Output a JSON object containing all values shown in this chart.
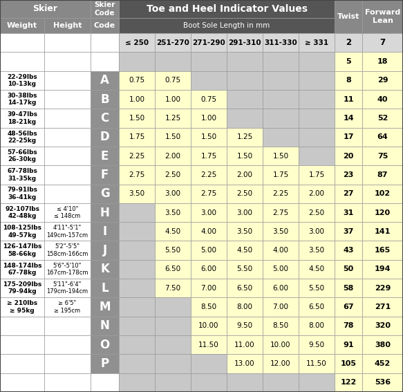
{
  "rows": [
    {
      "weight": "",
      "height": "",
      "code": "",
      "vals": [
        "",
        "",
        "",
        "",
        "",
        ""
      ],
      "twist": "2",
      "lean": "7",
      "is_range_row": true
    },
    {
      "weight": "",
      "height": "",
      "code": "",
      "vals": [
        "",
        "",
        "",
        "",
        "",
        ""
      ],
      "twist": "5",
      "lean": "18",
      "is_range_row": false
    },
    {
      "weight": "22-29lbs\n10-13kg",
      "height": "",
      "code": "A",
      "vals": [
        "0.75",
        "0.75",
        "",
        "",
        "",
        ""
      ],
      "twist": "8",
      "lean": "29",
      "is_range_row": false
    },
    {
      "weight": "30-38lbs\n14-17kg",
      "height": "",
      "code": "B",
      "vals": [
        "1.00",
        "1.00",
        "0.75",
        "",
        "",
        ""
      ],
      "twist": "11",
      "lean": "40",
      "is_range_row": false
    },
    {
      "weight": "39-47lbs\n18-21kg",
      "height": "",
      "code": "C",
      "vals": [
        "1.50",
        "1.25",
        "1.00",
        "",
        "",
        ""
      ],
      "twist": "14",
      "lean": "52",
      "is_range_row": false
    },
    {
      "weight": "48-56lbs\n22-25kg",
      "height": "",
      "code": "D",
      "vals": [
        "1.75",
        "1.50",
        "1.50",
        "1.25",
        "",
        ""
      ],
      "twist": "17",
      "lean": "64",
      "is_range_row": false
    },
    {
      "weight": "57-66lbs\n26-30kg",
      "height": "",
      "code": "E",
      "vals": [
        "2.25",
        "2.00",
        "1.75",
        "1.50",
        "1.50",
        ""
      ],
      "twist": "20",
      "lean": "75",
      "is_range_row": false
    },
    {
      "weight": "67-78lbs\n31-35kg",
      "height": "",
      "code": "F",
      "vals": [
        "2.75",
        "2.50",
        "2.25",
        "2.00",
        "1.75",
        "1.75"
      ],
      "twist": "23",
      "lean": "87",
      "is_range_row": false
    },
    {
      "weight": "79-91lbs\n36-41kg",
      "height": "",
      "code": "G",
      "vals": [
        "3.50",
        "3.00",
        "2.75",
        "2.50",
        "2.25",
        "2.00"
      ],
      "twist": "27",
      "lean": "102",
      "is_range_row": false
    },
    {
      "weight": "92-107lbs\n42-48kg",
      "height": "≤ 4'10\"\n≤ 148cm",
      "code": "H",
      "vals": [
        "",
        "3.50",
        "3.00",
        "3.00",
        "2.75",
        "2.50"
      ],
      "twist": "31",
      "lean": "120",
      "is_range_row": false
    },
    {
      "weight": "108-125lbs\n49-57kg",
      "height": "4'11\"-5'1\"\n149cm-157cm",
      "code": "I",
      "vals": [
        "",
        "4.50",
        "4.00",
        "3.50",
        "3.50",
        "3.00"
      ],
      "twist": "37",
      "lean": "141",
      "is_range_row": false
    },
    {
      "weight": "126-147lbs\n58-66kg",
      "height": "5'2\"-5'5\"\n158cm-166cm",
      "code": "J",
      "vals": [
        "",
        "5.50",
        "5.00",
        "4.50",
        "4.00",
        "3.50"
      ],
      "twist": "43",
      "lean": "165",
      "is_range_row": false
    },
    {
      "weight": "148-174lbs\n67-78kg",
      "height": "5'6\"-5'10\"\n167cm-178cm",
      "code": "K",
      "vals": [
        "",
        "6.50",
        "6.00",
        "5.50",
        "5.00",
        "4.50"
      ],
      "twist": "50",
      "lean": "194",
      "is_range_row": false
    },
    {
      "weight": "175-209lbs\n79-94kg",
      "height": "5'11\"-6'4\"\n179cm-194cm",
      "code": "L",
      "vals": [
        "",
        "7.50",
        "7.00",
        "6.50",
        "6.00",
        "5.50"
      ],
      "twist": "58",
      "lean": "229",
      "is_range_row": false
    },
    {
      "weight": "≥ 210lbs\n≥ 95kg",
      "height": "≥ 6'5\"\n≥ 195cm",
      "code": "M",
      "vals": [
        "",
        "",
        "8.50",
        "8.00",
        "7.00",
        "6.50"
      ],
      "twist": "67",
      "lean": "271",
      "is_range_row": false
    },
    {
      "weight": "",
      "height": "",
      "code": "N",
      "vals": [
        "",
        "",
        "10.00",
        "9.50",
        "8.50",
        "8.00"
      ],
      "twist": "78",
      "lean": "320",
      "is_range_row": false
    },
    {
      "weight": "",
      "height": "",
      "code": "O",
      "vals": [
        "",
        "",
        "11.50",
        "11.00",
        "10.00",
        "9.50"
      ],
      "twist": "91",
      "lean": "380",
      "is_range_row": false
    },
    {
      "weight": "",
      "height": "",
      "code": "P",
      "vals": [
        "",
        "",
        "",
        "13.00",
        "12.00",
        "11.50"
      ],
      "twist": "105",
      "lean": "452",
      "is_range_row": false
    },
    {
      "weight": "",
      "height": "",
      "code": "",
      "vals": [
        "",
        "",
        "",
        "",
        "",
        ""
      ],
      "twist": "122",
      "lean": "536",
      "is_range_row": false
    }
  ],
  "boot_ranges": [
    "≤ 250",
    "251-270",
    "271-290",
    "291-310",
    "311-330",
    "≥ 331"
  ],
  "c_dark": "#555555",
  "c_med": "#888888",
  "c_code_bg": "#909090",
  "c_yellow": "#ffffcc",
  "c_gray_data": "#c8c8c8",
  "c_gray_light": "#d8d8d8",
  "c_white": "#ffffff",
  "c_border": "#999999",
  "c_header_text": "#ffffff",
  "c_black": "#000000"
}
